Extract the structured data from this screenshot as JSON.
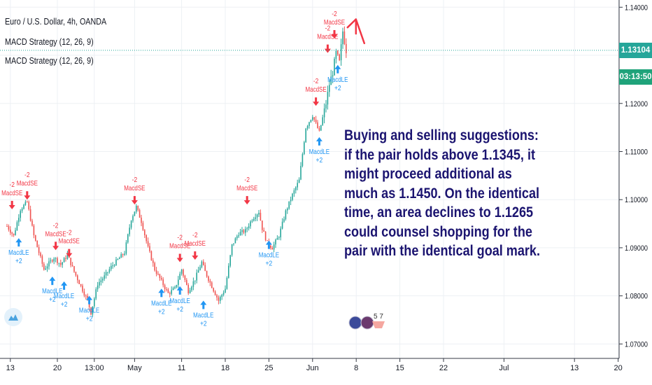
{
  "legend": {
    "symbol": "Euro / U.S. Dollar, 4h, OANDA",
    "study1": "MACD Strategy (12, 26, 9)",
    "study2": "MACD Strategy (12, 26, 9)"
  },
  "annotation": "Buying and selling suggestions: if the pair holds above 1.1345, it might proceed additional as much as 1.1450. On the identical time, an area declines to 1.1265 could counsel shopping for the pair with the identical goal mark.",
  "price_tags": {
    "last_price": "1.13104",
    "countdown": "03:13:50"
  },
  "social": {
    "count": "5 7"
  },
  "colors": {
    "up": "#26a69a",
    "down": "#ef5350",
    "long_signal": "#2196f3",
    "short_signal": "#f23645",
    "last_price_bg": "#26a69a",
    "countdown_bg": "#1fa37a",
    "annotation_text": "#1b1470",
    "arrow": "#f23645"
  },
  "chart_data": {
    "type": "candlestick",
    "symbol": "EURUSD",
    "timeframe": "4h",
    "y_axis": {
      "min": 1.067,
      "max": 1.1415,
      "ticks": [
        "1.14000",
        "1.13000",
        "1.12000",
        "1.11000",
        "1.10000",
        "1.09000",
        "1.08000",
        "1.07000"
      ]
    },
    "x_axis": {
      "ticks": [
        {
          "label": "13",
          "bar": 2
        },
        {
          "label": "20",
          "bar": 30
        },
        {
          "label": "13:00",
          "bar": 52
        },
        {
          "label": "May",
          "bar": 76
        },
        {
          "label": "11",
          "bar": 104
        },
        {
          "label": "18",
          "bar": 130
        },
        {
          "label": "25",
          "bar": 156
        },
        {
          "label": "Jun",
          "bar": 182
        },
        {
          "label": "8",
          "bar": 208
        },
        {
          "label": "15",
          "bar": 234
        },
        {
          "label": "22",
          "bar": 260
        },
        {
          "label": "Jul",
          "bar": 296
        },
        {
          "label": "13",
          "bar": 338
        },
        {
          "label": "20",
          "bar": 364
        }
      ]
    },
    "anchors": [
      [
        0,
        1.0945
      ],
      [
        4,
        1.0925
      ],
      [
        8,
        1.098
      ],
      [
        12,
        1.0995
      ],
      [
        16,
        1.0925
      ],
      [
        22,
        1.0855
      ],
      [
        28,
        1.088
      ],
      [
        32,
        1.0865
      ],
      [
        36,
        1.0885
      ],
      [
        40,
        1.085
      ],
      [
        44,
        1.082
      ],
      [
        48,
        1.079
      ],
      [
        50,
        1.0765
      ],
      [
        54,
        1.0825
      ],
      [
        58,
        1.084
      ],
      [
        62,
        1.086
      ],
      [
        66,
        1.0875
      ],
      [
        70,
        1.089
      ],
      [
        74,
        1.096
      ],
      [
        77,
        1.0985
      ],
      [
        80,
        1.0955
      ],
      [
        84,
        1.09
      ],
      [
        88,
        1.0855
      ],
      [
        92,
        1.083
      ],
      [
        96,
        1.0805
      ],
      [
        100,
        1.0815
      ],
      [
        104,
        1.0855
      ],
      [
        108,
        1.081
      ],
      [
        112,
        1.0835
      ],
      [
        116,
        1.087
      ],
      [
        118,
        1.085
      ],
      [
        122,
        1.082
      ],
      [
        126,
        1.079
      ],
      [
        130,
        1.0815
      ],
      [
        134,
        1.0905
      ],
      [
        138,
        1.093
      ],
      [
        142,
        1.0935
      ],
      [
        146,
        1.096
      ],
      [
        150,
        1.0975
      ],
      [
        152,
        1.094
      ],
      [
        155,
        1.091
      ],
      [
        158,
        1.09
      ],
      [
        162,
        1.0925
      ],
      [
        166,
        1.0975
      ],
      [
        170,
        1.101
      ],
      [
        174,
        1.104
      ],
      [
        178,
        1.115
      ],
      [
        182,
        1.1175
      ],
      [
        186,
        1.114
      ],
      [
        190,
        1.12
      ],
      [
        192,
        1.124
      ],
      [
        194,
        1.1265
      ],
      [
        196,
        1.1305
      ],
      [
        198,
        1.1285
      ],
      [
        200,
        1.135
      ],
      [
        202,
        1.131
      ]
    ],
    "signals": [
      {
        "type": "MacdSE",
        "bar": 3,
        "price": 1.098,
        "qty": "-2"
      },
      {
        "type": "MacdSE",
        "bar": 12,
        "price": 1.1,
        "qty": "-2"
      },
      {
        "type": "MacdLE",
        "bar": 7,
        "price": 1.092,
        "qty": "+2"
      },
      {
        "type": "MacdSE",
        "bar": 29,
        "price": 1.0895,
        "qty": "-2"
      },
      {
        "type": "MacdSE",
        "bar": 37,
        "price": 1.088,
        "qty": "-2"
      },
      {
        "type": "MacdLE",
        "bar": 27,
        "price": 1.084,
        "qty": "+2"
      },
      {
        "type": "MacdLE",
        "bar": 34,
        "price": 1.083,
        "qty": "+2"
      },
      {
        "type": "MacdLE",
        "bar": 49,
        "price": 1.08,
        "qty": "+2"
      },
      {
        "type": "MacdSE",
        "bar": 76,
        "price": 1.099,
        "qty": "-2"
      },
      {
        "type": "MacdLE",
        "bar": 92,
        "price": 1.0815,
        "qty": "+2"
      },
      {
        "type": "MacdSE",
        "bar": 103,
        "price": 1.087,
        "qty": "-2"
      },
      {
        "type": "MacdLE",
        "bar": 103,
        "price": 1.082,
        "qty": "+2"
      },
      {
        "type": "MacdSE",
        "bar": 112,
        "price": 1.0875,
        "qty": "-2"
      },
      {
        "type": "MacdLE",
        "bar": 117,
        "price": 1.079,
        "qty": "+2"
      },
      {
        "type": "MacdSE",
        "bar": 143,
        "price": 1.099,
        "qty": "-2"
      },
      {
        "type": "MacdLE",
        "bar": 156,
        "price": 1.0915,
        "qty": "+2"
      },
      {
        "type": "MacdSE",
        "bar": 184,
        "price": 1.1195,
        "qty": "-2"
      },
      {
        "type": "MacdLE",
        "bar": 186,
        "price": 1.113,
        "qty": "+2"
      },
      {
        "type": "MacdSE",
        "bar": 191,
        "price": 1.1305,
        "qty": "-2"
      },
      {
        "type": "MacdSE",
        "bar": 195,
        "price": 1.1335,
        "qty": "-2"
      },
      {
        "type": "MacdLE",
        "bar": 197,
        "price": 1.128,
        "qty": "+2"
      }
    ]
  }
}
